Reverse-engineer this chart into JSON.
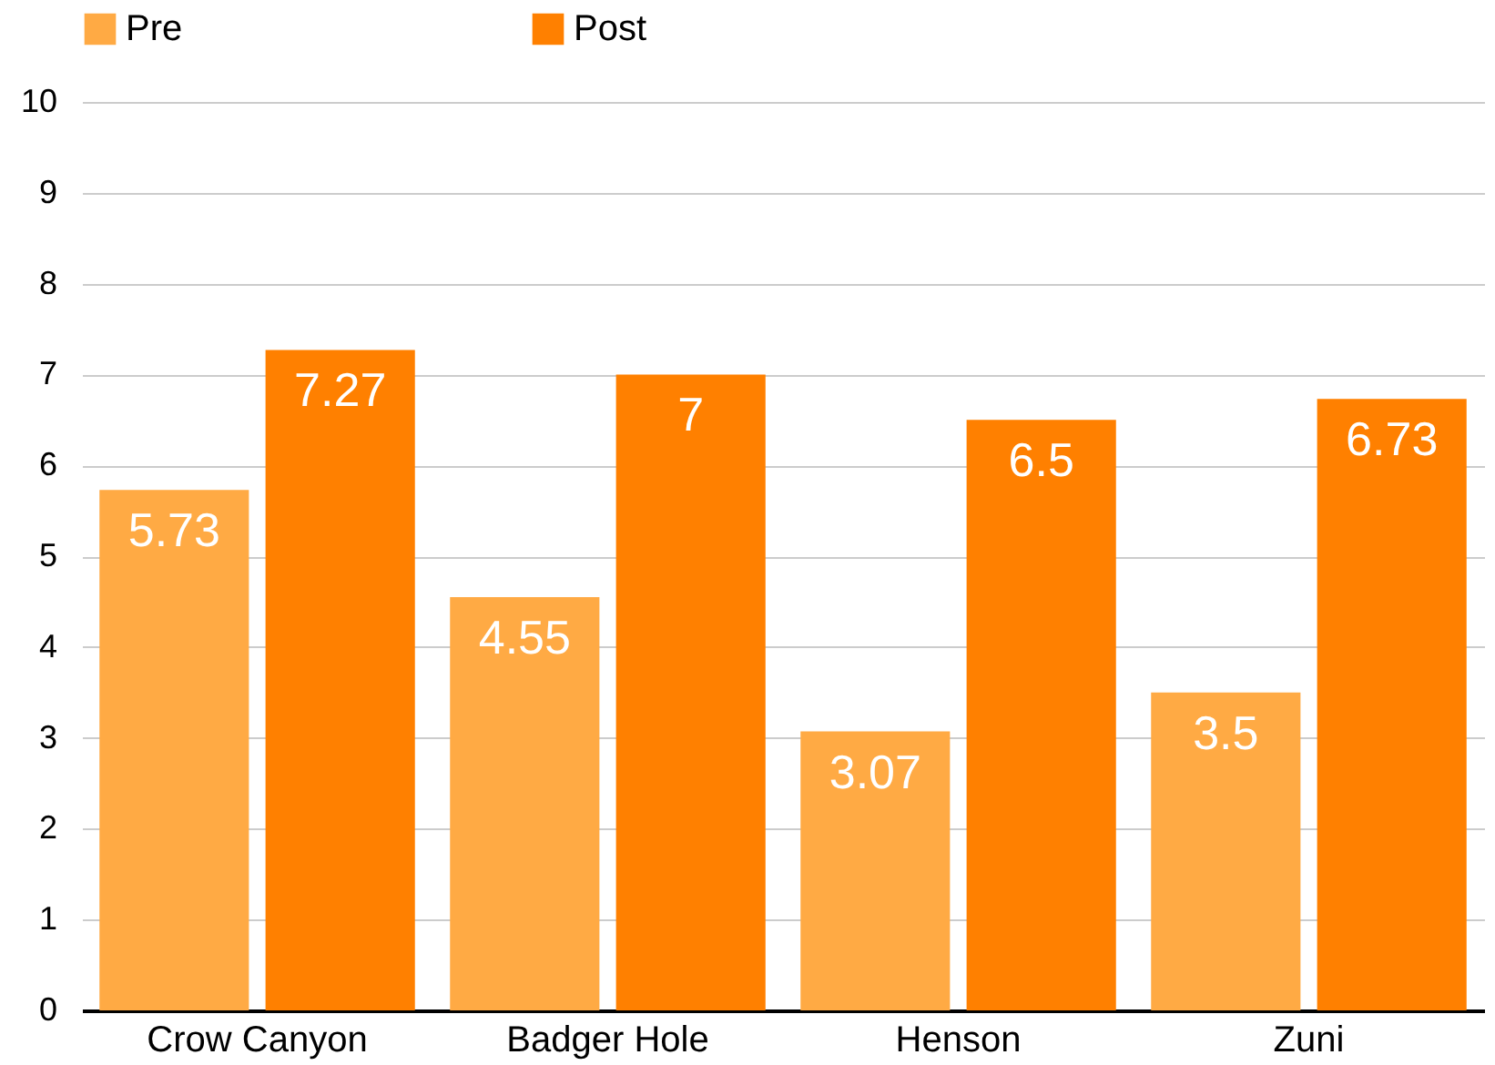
{
  "chart_data": {
    "type": "bar",
    "categories": [
      "Crow Canyon",
      "Badger Hole",
      "Henson",
      "Zuni"
    ],
    "series": [
      {
        "name": "Pre",
        "color": "#ffaa44",
        "values": [
          5.73,
          4.55,
          3.07,
          3.5
        ]
      },
      {
        "name": "Post",
        "color": "#ff8000",
        "values": [
          7.27,
          7,
          6.5,
          6.73
        ]
      }
    ],
    "ylim": [
      0,
      10
    ],
    "yticks": [
      0,
      1,
      2,
      3,
      4,
      5,
      6,
      7,
      8,
      9,
      10
    ],
    "grid": "y",
    "legend": "top",
    "data_labels": true
  }
}
